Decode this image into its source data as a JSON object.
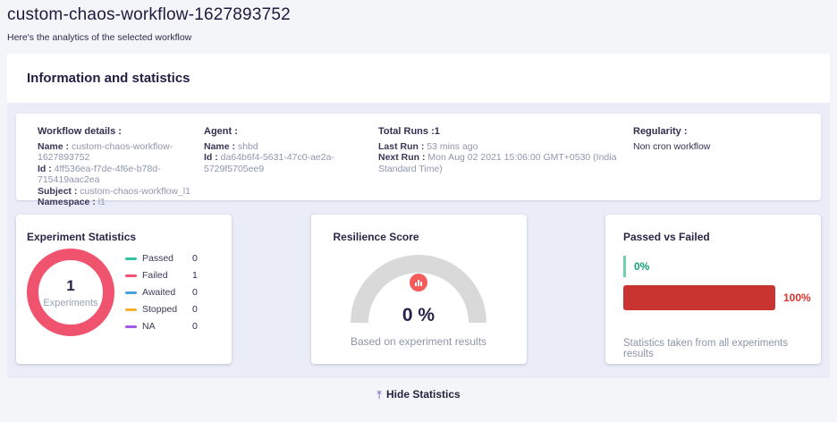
{
  "page": {
    "title": "custom-chaos-workflow-1627893752",
    "subtitle": "Here's the analytics of the selected workflow"
  },
  "section": {
    "title": "Information and statistics"
  },
  "details": {
    "workflow": {
      "heading": "Workflow details :",
      "fields": [
        {
          "label": "Name :",
          "value": "custom-chaos-workflow-1627893752"
        },
        {
          "label": "Id :",
          "value": "4ff536ea-f7de-4f6e-b78d-715419aac2ea"
        },
        {
          "label": "Subject :",
          "value": "custom-chaos-workflow_l1"
        },
        {
          "label": "Namespace :",
          "value": "l1"
        }
      ]
    },
    "agent": {
      "heading": "Agent :",
      "fields": [
        {
          "label": "Name :",
          "value": "shbd"
        },
        {
          "label": "Id :",
          "value": "da64b6f4-5631-47c0-ae2a-5729f5705ee9"
        }
      ]
    },
    "runs": {
      "heading": "Total Runs :1",
      "fields": [
        {
          "label": "Last Run :",
          "value": "53 mins ago"
        },
        {
          "label": "Next Run :",
          "value": "Mon Aug 02 2021 15:06:00 GMT+0530 (India Standard Time)"
        }
      ]
    },
    "regularity": {
      "heading": "Regularity :",
      "value": "Non cron workflow"
    }
  },
  "experiment_statistics": {
    "title": "Experiment Statistics",
    "total": "1",
    "total_label": "Experiments",
    "legend": [
      {
        "label": "Passed",
        "value": "0",
        "color": "#33c3a2"
      },
      {
        "label": "Failed",
        "value": "1",
        "color": "#f0536d"
      },
      {
        "label": "Awaited",
        "value": "0",
        "color": "#44a0e0"
      },
      {
        "label": "Stopped",
        "value": "0",
        "color": "#f8b02c"
      },
      {
        "label": "NA",
        "value": "0",
        "color": "#a557e8"
      }
    ]
  },
  "resilience_score": {
    "title": "Resilience Score",
    "score": "0 %",
    "caption": "Based on experiment results",
    "arc_color": "#d9d9d9",
    "badge_color": "#f45b5b",
    "badge_icon": "bar-chart-icon"
  },
  "passed_vs_failed": {
    "title": "Passed vs Failed",
    "passed_pct": "0%",
    "failed_pct": "100%",
    "caption": "Statistics taken from all experiments results",
    "passed_color": "#17a273",
    "failed_color": "#c93430"
  },
  "footer": {
    "hide_icon": "⤒",
    "hide_label": "Hide Statistics"
  },
  "chart_data": [
    {
      "type": "pie",
      "title": "Experiment Statistics",
      "categories": [
        "Passed",
        "Failed",
        "Awaited",
        "Stopped",
        "NA"
      ],
      "values": [
        0,
        1,
        0,
        0,
        0
      ],
      "center_total": 1,
      "center_label": "Experiments",
      "colors": [
        "#33c3a2",
        "#f0536d",
        "#44a0e0",
        "#f8b02c",
        "#a557e8"
      ],
      "legend_position": "right"
    },
    {
      "type": "gauge",
      "title": "Resilience Score",
      "value": 0,
      "range": [
        0,
        100
      ],
      "label": "0 %",
      "caption": "Based on experiment results"
    },
    {
      "type": "bar",
      "title": "Passed vs Failed",
      "categories": [
        "Passed",
        "Failed"
      ],
      "values": [
        0,
        100
      ],
      "unit": "%",
      "colors": [
        "#17a273",
        "#c93430"
      ],
      "caption": "Statistics taken from all experiments results"
    }
  ]
}
